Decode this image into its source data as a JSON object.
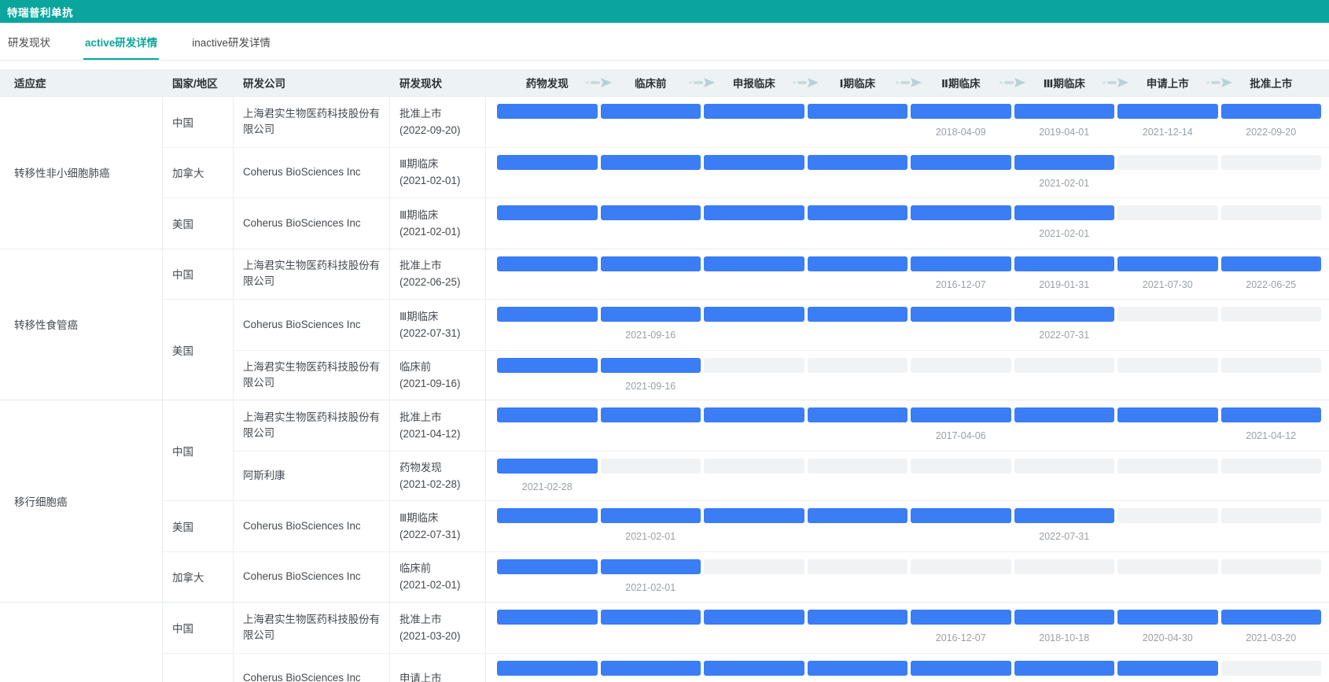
{
  "colors": {
    "accent_teal": "#0aa69e",
    "bar_done_blue": "#3a7df5",
    "bar_todo_gray": "#f1f2f3",
    "header_bg": "#edf2f4"
  },
  "title_bar": {
    "title": "特瑞普利单抗"
  },
  "tabs": [
    {
      "label": "研发现状",
      "active": false
    },
    {
      "label": "active研发详情",
      "active": true
    },
    {
      "label": "inactive研发详情",
      "active": false
    }
  ],
  "table": {
    "columns": [
      "适应症",
      "国家/地区",
      "研发公司",
      "研发现状"
    ],
    "stages": [
      "药物发现",
      "临床前",
      "申报临床",
      "Ⅰ期临床",
      "Ⅱ期临床",
      "Ⅲ期临床",
      "申请上市",
      "批准上市"
    ],
    "groups": [
      {
        "indication": "转移性非小细胞肺癌",
        "countries": [
          {
            "name": "中国",
            "rows": [
              {
                "company": "上海君实生物医药科技股份有限公司",
                "status": "批准上市",
                "status_date": "(2022-09-20)",
                "stages_done": 8,
                "dates": {
                  "5": "2018-04-09",
                  "6": "2019-04-01",
                  "7": "2021-12-14",
                  "8": "2022-09-20"
                }
              }
            ]
          },
          {
            "name": "加拿大",
            "rows": [
              {
                "company": "Coherus BioSciences Inc",
                "status": "Ⅲ期临床",
                "status_date": "(2021-02-01)",
                "stages_done": 6,
                "dates": {
                  "6": "2021-02-01"
                }
              }
            ]
          },
          {
            "name": "美国",
            "rows": [
              {
                "company": "Coherus BioSciences Inc",
                "status": "Ⅲ期临床",
                "status_date": "(2021-02-01)",
                "stages_done": 6,
                "dates": {
                  "6": "2021-02-01"
                }
              }
            ]
          }
        ]
      },
      {
        "indication": "转移性食管癌",
        "countries": [
          {
            "name": "中国",
            "rows": [
              {
                "company": "上海君实生物医药科技股份有限公司",
                "status": "批准上市",
                "status_date": "(2022-06-25)",
                "stages_done": 8,
                "dates": {
                  "5": "2016-12-07",
                  "6": "2019-01-31",
                  "7": "2021-07-30",
                  "8": "2022-06-25"
                }
              }
            ]
          },
          {
            "name": "美国",
            "rows": [
              {
                "company": "Coherus BioSciences Inc",
                "status": "Ⅲ期临床",
                "status_date": "(2022-07-31)",
                "stages_done": 6,
                "dates": {
                  "2": "2021-09-16",
                  "6": "2022-07-31"
                }
              },
              {
                "company": "上海君实生物医药科技股份有限公司",
                "status": "临床前",
                "status_date": "(2021-09-16)",
                "stages_done": 2,
                "dates": {
                  "2": "2021-09-16"
                }
              }
            ]
          }
        ]
      },
      {
        "indication": "移行细胞癌",
        "countries": [
          {
            "name": "中国",
            "rows": [
              {
                "company": "上海君实生物医药科技股份有限公司",
                "status": "批准上市",
                "status_date": "(2021-04-12)",
                "stages_done": 8,
                "dates": {
                  "5": "2017-04-06",
                  "8": "2021-04-12"
                }
              },
              {
                "company": "阿斯利康",
                "status": "药物发现",
                "status_date": "(2021-02-28)",
                "stages_done": 1,
                "dates": {
                  "1": "2021-02-28"
                }
              }
            ]
          },
          {
            "name": "美国",
            "rows": [
              {
                "company": "Coherus BioSciences Inc",
                "status": "Ⅲ期临床",
                "status_date": "(2022-07-31)",
                "stages_done": 6,
                "dates": {
                  "2": "2021-02-01",
                  "6": "2022-07-31"
                }
              }
            ]
          },
          {
            "name": "加拿大",
            "rows": [
              {
                "company": "Coherus BioSciences Inc",
                "status": "临床前",
                "status_date": "(2021-02-01)",
                "stages_done": 2,
                "dates": {
                  "2": "2021-02-01"
                }
              }
            ]
          }
        ]
      },
      {
        "indication": "",
        "countries": [
          {
            "name": "中国",
            "rows": [
              {
                "company": "上海君实生物医药科技股份有限公司",
                "status": "批准上市",
                "status_date": "(2021-03-20)",
                "stages_done": 8,
                "dates": {
                  "5": "2016-12-07",
                  "6": "2018-10-18",
                  "7": "2020-04-30",
                  "8": "2021-03-20"
                }
              }
            ]
          },
          {
            "name": "",
            "rows": [
              {
                "company": "Coherus BioSciences Inc",
                "status": "申请上市",
                "status_date": "",
                "stages_done": 7,
                "dates": {}
              }
            ]
          }
        ]
      }
    ]
  }
}
